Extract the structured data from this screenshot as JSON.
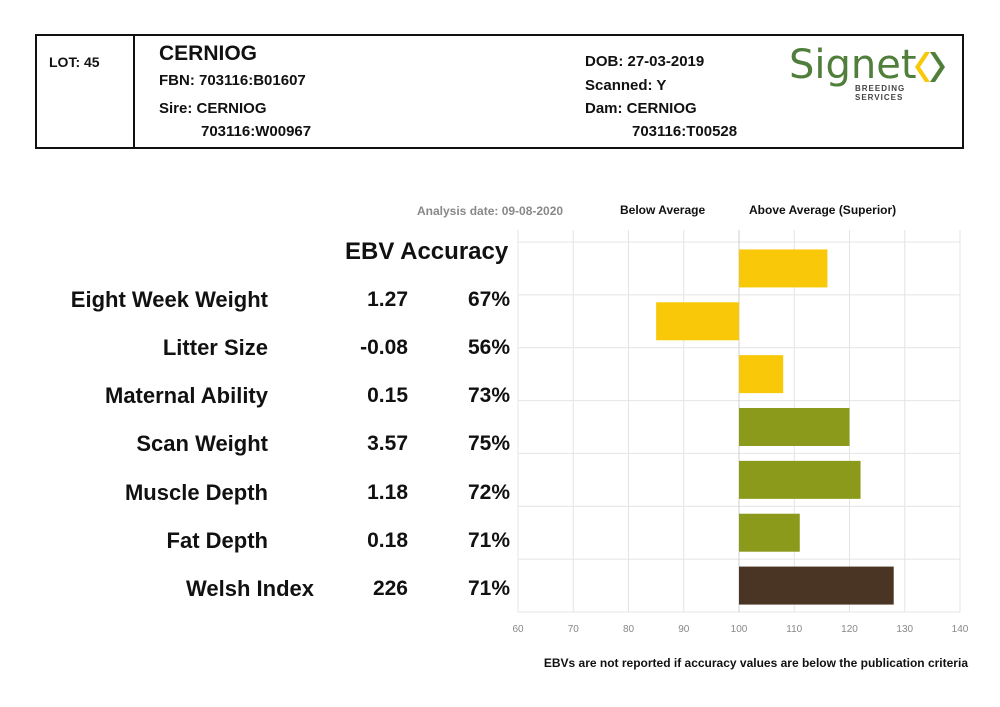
{
  "header": {
    "lot": "LOT: 45",
    "name": "CERNIOG",
    "fbn": "FBN: 703116:B01607",
    "sire_label": "Sire: CERNIOG",
    "sire_id": "703116:W00967",
    "dob": "DOB: 27-03-2019",
    "scanned": "Scanned: Y",
    "dam_label": "Dam: CERNIOG",
    "dam_id": "703116:T00528",
    "logo_word": "Signet",
    "logo_sub": "BREEDING SERVICES"
  },
  "analysis_date": "Analysis date: 09-08-2020",
  "legend": {
    "below": "Below Average",
    "above": "Above Average (Superior)"
  },
  "column_heading": "EBV Accuracy",
  "footer_note": "EBVs are not reported if accuracy values are below the publication criteria",
  "colors": {
    "yellow": "#f9c909",
    "green": "#8c9a1c",
    "brown": "#4a3424",
    "grid": "#e4e4e4",
    "logo_green": "#4f7f3a"
  },
  "traits": [
    {
      "name": "Eight Week Weight",
      "ebv": "1.27",
      "accuracy": "67%"
    },
    {
      "name": "Litter Size",
      "ebv": "-0.08",
      "accuracy": "56%"
    },
    {
      "name": "Maternal Ability",
      "ebv": "0.15",
      "accuracy": "73%"
    },
    {
      "name": "Scan Weight",
      "ebv": "3.57",
      "accuracy": "75%"
    },
    {
      "name": "Muscle Depth",
      "ebv": "1.18",
      "accuracy": "72%"
    },
    {
      "name": "Fat Depth",
      "ebv": "0.18",
      "accuracy": "71%"
    },
    {
      "name": "Welsh Index",
      "ebv": "226",
      "accuracy": "71%"
    }
  ],
  "chart_data": {
    "type": "bar",
    "orientation": "horizontal",
    "baseline": 100,
    "categories": [
      "Eight Week Weight",
      "Litter Size",
      "Maternal Ability",
      "Scan Weight",
      "Muscle Depth",
      "Fat Depth",
      "Welsh Index"
    ],
    "values": [
      116,
      85,
      108,
      120,
      122,
      111,
      128
    ],
    "bar_colors": [
      "yellow",
      "yellow",
      "yellow",
      "green",
      "green",
      "green",
      "brown"
    ],
    "xlim": [
      60,
      140
    ],
    "xticks": [
      60,
      70,
      80,
      90,
      100,
      110,
      120,
      130,
      140
    ],
    "grid": true
  }
}
